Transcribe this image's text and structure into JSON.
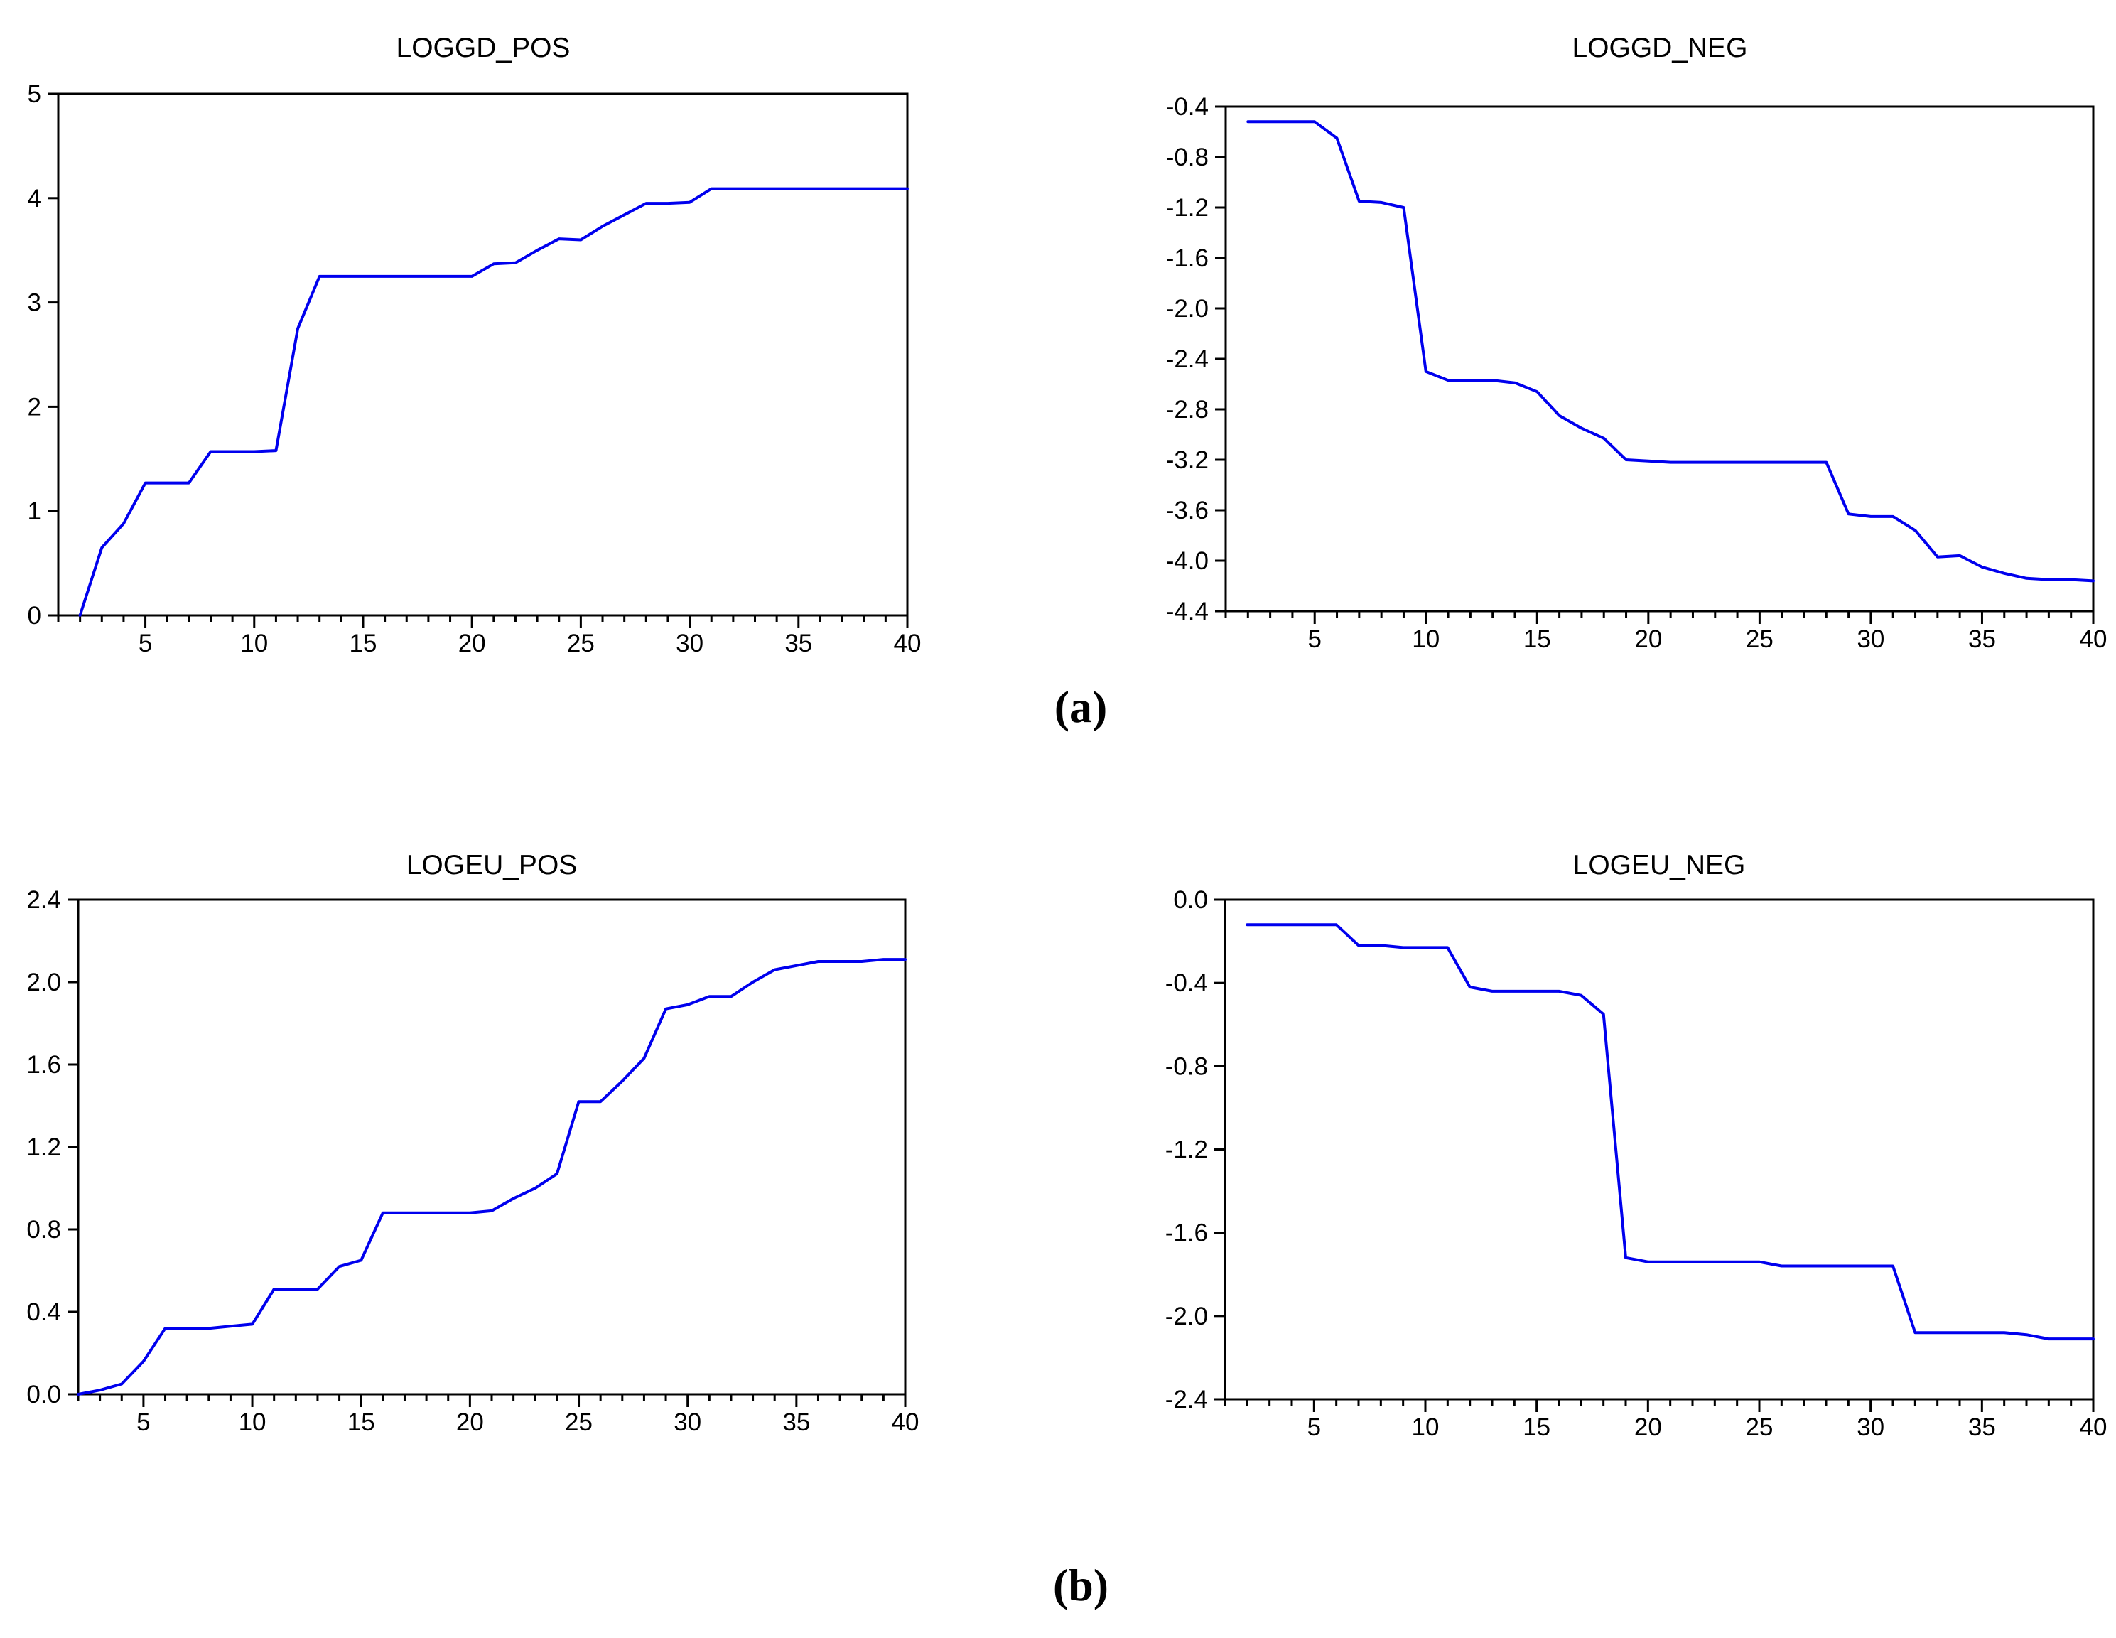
{
  "figure": {
    "panels": [
      {
        "label": "(a)",
        "charts": [
          "LOGGD_POS",
          "LOGGD_NEG"
        ]
      },
      {
        "label": "(b)",
        "charts": [
          "LOGEU_POS",
          "LOGEU_NEG"
        ]
      }
    ]
  },
  "styles": {
    "background": "#FFFFFF",
    "axis_color": "#000000",
    "line_color": "#0000EE"
  },
  "chart_data": [
    {
      "id": "loggd-pos",
      "type": "line",
      "title": "LOGGD_POS",
      "xlabel": "",
      "ylabel": "",
      "grid": false,
      "legend": false,
      "xlim": [
        1,
        40
      ],
      "ylim": [
        0,
        5
      ],
      "x_major_ticks": [
        5,
        10,
        15,
        20,
        25,
        30,
        35,
        40
      ],
      "x_tick_labels": [
        "5",
        "10",
        "15",
        "20",
        "25",
        "30",
        "35",
        "40"
      ],
      "y_tick_values": [
        0,
        1,
        2,
        3,
        4,
        5
      ],
      "y_tick_labels": [
        "0",
        "1",
        "2",
        "3",
        "4",
        "5"
      ],
      "x": [
        2,
        3,
        4,
        5,
        6,
        7,
        8,
        9,
        10,
        11,
        12,
        13,
        14,
        15,
        16,
        17,
        18,
        19,
        20,
        21,
        22,
        23,
        24,
        25,
        26,
        27,
        28,
        29,
        30,
        31,
        32,
        33,
        34,
        35,
        36,
        37,
        38,
        39,
        40
      ],
      "values": [
        0.0,
        0.65,
        0.88,
        1.27,
        1.27,
        1.27,
        1.57,
        1.57,
        1.57,
        1.58,
        2.75,
        3.25,
        3.25,
        3.25,
        3.25,
        3.25,
        3.25,
        3.25,
        3.25,
        3.37,
        3.38,
        3.5,
        3.61,
        3.6,
        3.73,
        3.84,
        3.95,
        3.95,
        3.96,
        4.09,
        4.09,
        4.09,
        4.09,
        4.09,
        4.09,
        4.09,
        4.09,
        4.09,
        4.09
      ]
    },
    {
      "id": "loggd-neg",
      "type": "line",
      "title": "LOGGD_NEG",
      "xlabel": "",
      "ylabel": "",
      "grid": false,
      "legend": false,
      "xlim": [
        1,
        40
      ],
      "ylim": [
        -4.4,
        -0.4
      ],
      "x_major_ticks": [
        5,
        10,
        15,
        20,
        25,
        30,
        35,
        40
      ],
      "x_tick_labels": [
        "5",
        "10",
        "15",
        "20",
        "25",
        "30",
        "35",
        "40"
      ],
      "y_tick_values": [
        -0.4,
        -0.8,
        -1.2,
        -1.6,
        -2.0,
        -2.4,
        -2.8,
        -3.2,
        -3.6,
        -4.0,
        -4.4
      ],
      "y_tick_labels": [
        "-0.4",
        "-0.8",
        "-1.2",
        "-1.6",
        "-2.0",
        "-2.4",
        "-2.8",
        "-3.2",
        "-3.6",
        "-4.0",
        "-4.4"
      ],
      "x": [
        2,
        3,
        4,
        5,
        6,
        7,
        8,
        9,
        10,
        11,
        12,
        13,
        14,
        15,
        16,
        17,
        18,
        19,
        20,
        21,
        22,
        23,
        24,
        25,
        26,
        27,
        28,
        29,
        30,
        31,
        32,
        33,
        34,
        35,
        36,
        37,
        38,
        39,
        40
      ],
      "values": [
        -0.52,
        -0.52,
        -0.52,
        -0.52,
        -0.65,
        -1.15,
        -1.16,
        -1.2,
        -2.5,
        -2.57,
        -2.57,
        -2.57,
        -2.59,
        -2.66,
        -2.85,
        -2.95,
        -3.03,
        -3.2,
        -3.21,
        -3.22,
        -3.22,
        -3.22,
        -3.22,
        -3.22,
        -3.22,
        -3.22,
        -3.22,
        -3.63,
        -3.65,
        -3.65,
        -3.76,
        -3.97,
        -3.96,
        -4.05,
        -4.1,
        -4.14,
        -4.15,
        -4.15,
        -4.16
      ]
    },
    {
      "id": "logeu-pos",
      "type": "line",
      "title": "LOGEU_POS",
      "xlabel": "",
      "ylabel": "",
      "grid": false,
      "legend": false,
      "xlim": [
        2,
        40
      ],
      "ylim": [
        0,
        2.4
      ],
      "x_major_ticks": [
        5,
        10,
        15,
        20,
        25,
        30,
        35,
        40
      ],
      "x_tick_labels": [
        "5",
        "10",
        "15",
        "20",
        "25",
        "30",
        "35",
        "40"
      ],
      "y_tick_values": [
        0.0,
        0.4,
        0.8,
        1.2,
        1.6,
        2.0,
        2.4
      ],
      "y_tick_labels": [
        "0.0",
        "0.4",
        "0.8",
        "1.2",
        "1.6",
        "2.0",
        "2.4"
      ],
      "x": [
        2,
        3,
        4,
        5,
        6,
        7,
        8,
        9,
        10,
        11,
        12,
        13,
        14,
        15,
        16,
        17,
        18,
        19,
        20,
        21,
        22,
        23,
        24,
        25,
        26,
        27,
        28,
        29,
        30,
        31,
        32,
        33,
        34,
        35,
        36,
        37,
        38,
        39,
        40
      ],
      "values": [
        0.0,
        0.02,
        0.05,
        0.16,
        0.32,
        0.32,
        0.32,
        0.33,
        0.34,
        0.51,
        0.51,
        0.51,
        0.62,
        0.65,
        0.88,
        0.88,
        0.88,
        0.88,
        0.88,
        0.89,
        0.95,
        1.0,
        1.07,
        1.42,
        1.42,
        1.52,
        1.63,
        1.87,
        1.89,
        1.93,
        1.93,
        2.0,
        2.06,
        2.08,
        2.1,
        2.1,
        2.1,
        2.11,
        2.11
      ]
    },
    {
      "id": "logeu-neg",
      "type": "line",
      "title": "LOGEU_NEG",
      "xlabel": "",
      "ylabel": "",
      "grid": false,
      "legend": false,
      "xlim": [
        1,
        40
      ],
      "ylim": [
        -2.4,
        0
      ],
      "x_major_ticks": [
        5,
        10,
        15,
        20,
        25,
        30,
        35,
        40
      ],
      "x_tick_labels": [
        "5",
        "10",
        "15",
        "20",
        "25",
        "30",
        "35",
        "40"
      ],
      "y_tick_values": [
        0.0,
        -0.4,
        -0.8,
        -1.2,
        -1.6,
        -2.0,
        -2.4
      ],
      "y_tick_labels": [
        "0.0",
        "-0.4",
        "-0.8",
        "-1.2",
        "-1.6",
        "-2.0",
        "-2.4"
      ],
      "x": [
        2,
        3,
        4,
        5,
        6,
        7,
        8,
        9,
        10,
        11,
        12,
        13,
        14,
        15,
        16,
        17,
        18,
        19,
        20,
        21,
        22,
        23,
        24,
        25,
        26,
        27,
        28,
        29,
        30,
        31,
        32,
        33,
        34,
        35,
        36,
        37,
        38,
        39,
        40
      ],
      "values": [
        -0.12,
        -0.12,
        -0.12,
        -0.12,
        -0.12,
        -0.22,
        -0.22,
        -0.23,
        -0.23,
        -0.23,
        -0.42,
        -0.44,
        -0.44,
        -0.44,
        -0.44,
        -0.46,
        -0.55,
        -1.72,
        -1.74,
        -1.74,
        -1.74,
        -1.74,
        -1.74,
        -1.74,
        -1.76,
        -1.76,
        -1.76,
        -1.76,
        -1.76,
        -1.76,
        -2.08,
        -2.08,
        -2.08,
        -2.08,
        -2.08,
        -2.09,
        -2.11,
        -2.11,
        -2.11
      ]
    }
  ]
}
